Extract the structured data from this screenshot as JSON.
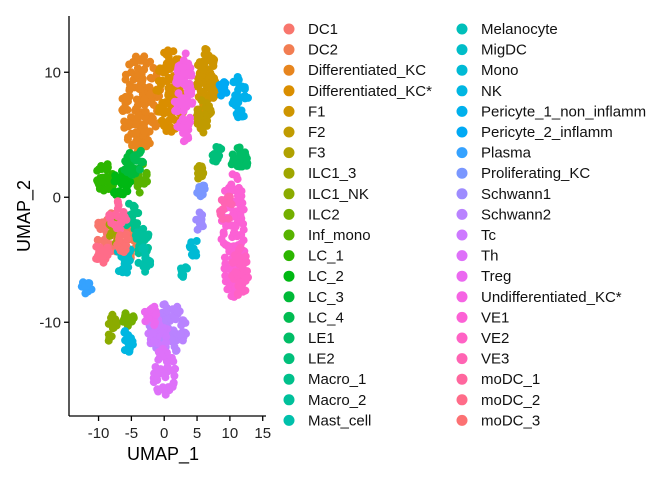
{
  "chart_data": {
    "type": "scatter",
    "title": "",
    "xlabel": "UMAP_1",
    "ylabel": "UMAP_2",
    "xlim": [
      -14.5,
      15.5
    ],
    "ylim": [
      -17.5,
      14.5
    ],
    "x_ticks": [
      -10,
      -5,
      0,
      5,
      10,
      15
    ],
    "y_ticks": [
      -10,
      0,
      10
    ],
    "x_tick_labels": [
      "-10",
      "-5",
      "0",
      "5",
      "10",
      "15"
    ],
    "y_tick_labels": [
      "-10",
      "0",
      "10"
    ],
    "grid": false,
    "legend_position": "right",
    "legend_columns": 2,
    "series": [
      {
        "name": "DC1",
        "color": "#F8766D",
        "clusters": [
          {
            "x": -8.5,
            "y": -3.0,
            "rx": 1.8,
            "ry": 2.0,
            "n": 40
          }
        ]
      },
      {
        "name": "DC2",
        "color": "#F27D52",
        "clusters": [
          {
            "x": -5.5,
            "y": -3.5,
            "rx": 1.5,
            "ry": 1.4,
            "n": 30
          }
        ]
      },
      {
        "name": "Differentiated_KC",
        "color": "#E7851E",
        "clusters": [
          {
            "x": -3.5,
            "y": 7.5,
            "rx": 3.0,
            "ry": 4.0,
            "n": 140
          }
        ]
      },
      {
        "name": "Differentiated_KC*",
        "color": "#DA8E00",
        "clusters": [
          {
            "x": 1.0,
            "y": 8.5,
            "rx": 2.2,
            "ry": 3.5,
            "n": 90
          }
        ]
      },
      {
        "name": "F1",
        "color": "#CE9500",
        "clusters": [
          {
            "x": 6.5,
            "y": 9.5,
            "rx": 1.6,
            "ry": 2.6,
            "n": 70
          }
        ]
      },
      {
        "name": "F2",
        "color": "#C09B00",
        "clusters": [
          {
            "x": 6.0,
            "y": 6.5,
            "rx": 1.2,
            "ry": 1.4,
            "n": 35
          }
        ]
      },
      {
        "name": "F3",
        "color": "#B0A100",
        "clusters": [
          {
            "x": 5.5,
            "y": 2.0,
            "rx": 0.7,
            "ry": 0.6,
            "n": 12
          }
        ]
      },
      {
        "name": "ILC1_3",
        "color": "#9FA600",
        "clusters": [
          {
            "x": -7.5,
            "y": -2.5,
            "rx": 1.0,
            "ry": 1.2,
            "n": 15
          }
        ]
      },
      {
        "name": "ILC1_NK",
        "color": "#8BAB00",
        "clusters": [
          {
            "x": -8.0,
            "y": -10.5,
            "rx": 0.9,
            "ry": 1.2,
            "n": 15
          }
        ]
      },
      {
        "name": "ILC2",
        "color": "#74AF00",
        "clusters": [
          {
            "x": -5.5,
            "y": -9.5,
            "rx": 0.9,
            "ry": 0.9,
            "n": 12
          }
        ]
      },
      {
        "name": "Inf_mono",
        "color": "#58B300",
        "clusters": [
          {
            "x": -3.5,
            "y": 1.5,
            "rx": 1.0,
            "ry": 1.2,
            "n": 15
          }
        ]
      },
      {
        "name": "LC_1",
        "color": "#2CB600",
        "clusters": [
          {
            "x": -9.0,
            "y": 1.5,
            "rx": 1.5,
            "ry": 1.2,
            "n": 30
          }
        ]
      },
      {
        "name": "LC_2",
        "color": "#00B813",
        "clusters": [
          {
            "x": -6.5,
            "y": 1.0,
            "rx": 1.4,
            "ry": 1.2,
            "n": 25
          }
        ]
      },
      {
        "name": "LC_3",
        "color": "#00BA38",
        "clusters": [
          {
            "x": -5.0,
            "y": 2.5,
            "rx": 1.2,
            "ry": 1.2,
            "n": 20
          }
        ]
      },
      {
        "name": "LC_4",
        "color": "#00BC51",
        "clusters": [
          {
            "x": -4.0,
            "y": 3.0,
            "rx": 0.9,
            "ry": 0.9,
            "n": 12
          }
        ]
      },
      {
        "name": "LE1",
        "color": "#00BD66",
        "clusters": [
          {
            "x": 11.5,
            "y": 3.0,
            "rx": 1.4,
            "ry": 1.0,
            "n": 30
          }
        ]
      },
      {
        "name": "LE2",
        "color": "#00BF7A",
        "clusters": [
          {
            "x": 8.0,
            "y": 3.5,
            "rx": 0.8,
            "ry": 0.8,
            "n": 12
          }
        ]
      },
      {
        "name": "Macro_1",
        "color": "#00C08B",
        "clusters": [
          {
            "x": -5.0,
            "y": -1.5,
            "rx": 1.2,
            "ry": 1.2,
            "n": 20
          }
        ]
      },
      {
        "name": "Macro_2",
        "color": "#00C09B",
        "clusters": [
          {
            "x": -3.5,
            "y": -3.5,
            "rx": 1.2,
            "ry": 1.5,
            "n": 20
          }
        ]
      },
      {
        "name": "Mast_cell",
        "color": "#00C0AB",
        "clusters": [
          {
            "x": -3.0,
            "y": -5.0,
            "rx": 1.0,
            "ry": 1.0,
            "n": 15
          }
        ]
      },
      {
        "name": "Melanocyte",
        "color": "#00BFBA",
        "clusters": [
          {
            "x": 3.0,
            "y": -6.0,
            "rx": 0.7,
            "ry": 0.7,
            "n": 10
          }
        ]
      },
      {
        "name": "MigDC",
        "color": "#00BDC8",
        "clusters": [
          {
            "x": -6.0,
            "y": -5.0,
            "rx": 1.3,
            "ry": 1.3,
            "n": 20
          }
        ]
      },
      {
        "name": "Mono",
        "color": "#00BAD5",
        "clusters": [
          {
            "x": 4.5,
            "y": -4.0,
            "rx": 0.8,
            "ry": 0.8,
            "n": 10
          }
        ]
      },
      {
        "name": "NK",
        "color": "#00B6E2",
        "clusters": [
          {
            "x": -5.5,
            "y": -11.5,
            "rx": 0.9,
            "ry": 1.0,
            "n": 15
          }
        ]
      },
      {
        "name": "Pericyte_1_non_inflamm",
        "color": "#00B0EC",
        "clusters": [
          {
            "x": 11.5,
            "y": 8.0,
            "rx": 1.4,
            "ry": 1.8,
            "n": 35
          }
        ]
      },
      {
        "name": "Pericyte_2_inflamm",
        "color": "#00A9F4",
        "clusters": [
          {
            "x": 9.0,
            "y": 8.5,
            "rx": 0.8,
            "ry": 0.8,
            "n": 12
          }
        ]
      },
      {
        "name": "Plasma",
        "color": "#35A2FF",
        "clusters": [
          {
            "x": -12.0,
            "y": -7.3,
            "rx": 1.0,
            "ry": 0.6,
            "n": 12
          }
        ]
      },
      {
        "name": "Proliferating_KC",
        "color": "#7A97FF",
        "clusters": [
          {
            "x": 5.5,
            "y": 0.5,
            "rx": 0.8,
            "ry": 0.7,
            "n": 10
          }
        ]
      },
      {
        "name": "Schwann1",
        "color": "#9E8CFF",
        "clusters": [
          {
            "x": 5.5,
            "y": -2.0,
            "rx": 0.7,
            "ry": 0.8,
            "n": 10
          }
        ]
      },
      {
        "name": "Schwann2",
        "color": "#B983FF",
        "clusters": [
          {
            "x": 0.5,
            "y": -10.5,
            "rx": 3.0,
            "ry": 2.0,
            "n": 80
          }
        ]
      },
      {
        "name": "Tc",
        "color": "#CD79FF",
        "clusters": [
          {
            "x": -1.0,
            "y": -11.0,
            "rx": 1.5,
            "ry": 1.5,
            "n": 30
          }
        ]
      },
      {
        "name": "Th",
        "color": "#DE71F9",
        "clusters": [
          {
            "x": 0.0,
            "y": -14.0,
            "rx": 1.8,
            "ry": 2.0,
            "n": 45
          }
        ]
      },
      {
        "name": "Treg",
        "color": "#EB69F0",
        "clusters": [
          {
            "x": -2.0,
            "y": -9.5,
            "rx": 1.0,
            "ry": 1.0,
            "n": 15
          }
        ]
      },
      {
        "name": "Undifferentiated_KC*",
        "color": "#F564E3",
        "clusters": [
          {
            "x": 3.0,
            "y": 8.0,
            "rx": 1.4,
            "ry": 3.8,
            "n": 80
          }
        ]
      },
      {
        "name": "VE1",
        "color": "#FC61D5",
        "clusters": [
          {
            "x": 10.5,
            "y": -3.0,
            "rx": 1.8,
            "ry": 5.0,
            "n": 110
          }
        ]
      },
      {
        "name": "VE2",
        "color": "#FF62C5",
        "clusters": [
          {
            "x": 11.5,
            "y": -6.0,
            "rx": 1.3,
            "ry": 2.0,
            "n": 35
          }
        ]
      },
      {
        "name": "VE3",
        "color": "#FF64B3",
        "clusters": [
          {
            "x": 9.5,
            "y": -1.0,
            "rx": 1.0,
            "ry": 1.2,
            "n": 15
          }
        ]
      },
      {
        "name": "moDC_1",
        "color": "#FF679E",
        "clusters": [
          {
            "x": -7.0,
            "y": -1.5,
            "rx": 1.4,
            "ry": 1.2,
            "n": 25
          }
        ]
      },
      {
        "name": "moDC_2",
        "color": "#FF6C89",
        "clusters": [
          {
            "x": -9.5,
            "y": -4.5,
            "rx": 1.2,
            "ry": 1.0,
            "n": 20
          }
        ]
      },
      {
        "name": "moDC_3",
        "color": "#FC7173",
        "clusters": [
          {
            "x": -6.5,
            "y": -3.5,
            "rx": 1.0,
            "ry": 1.0,
            "n": 15
          }
        ]
      }
    ]
  }
}
